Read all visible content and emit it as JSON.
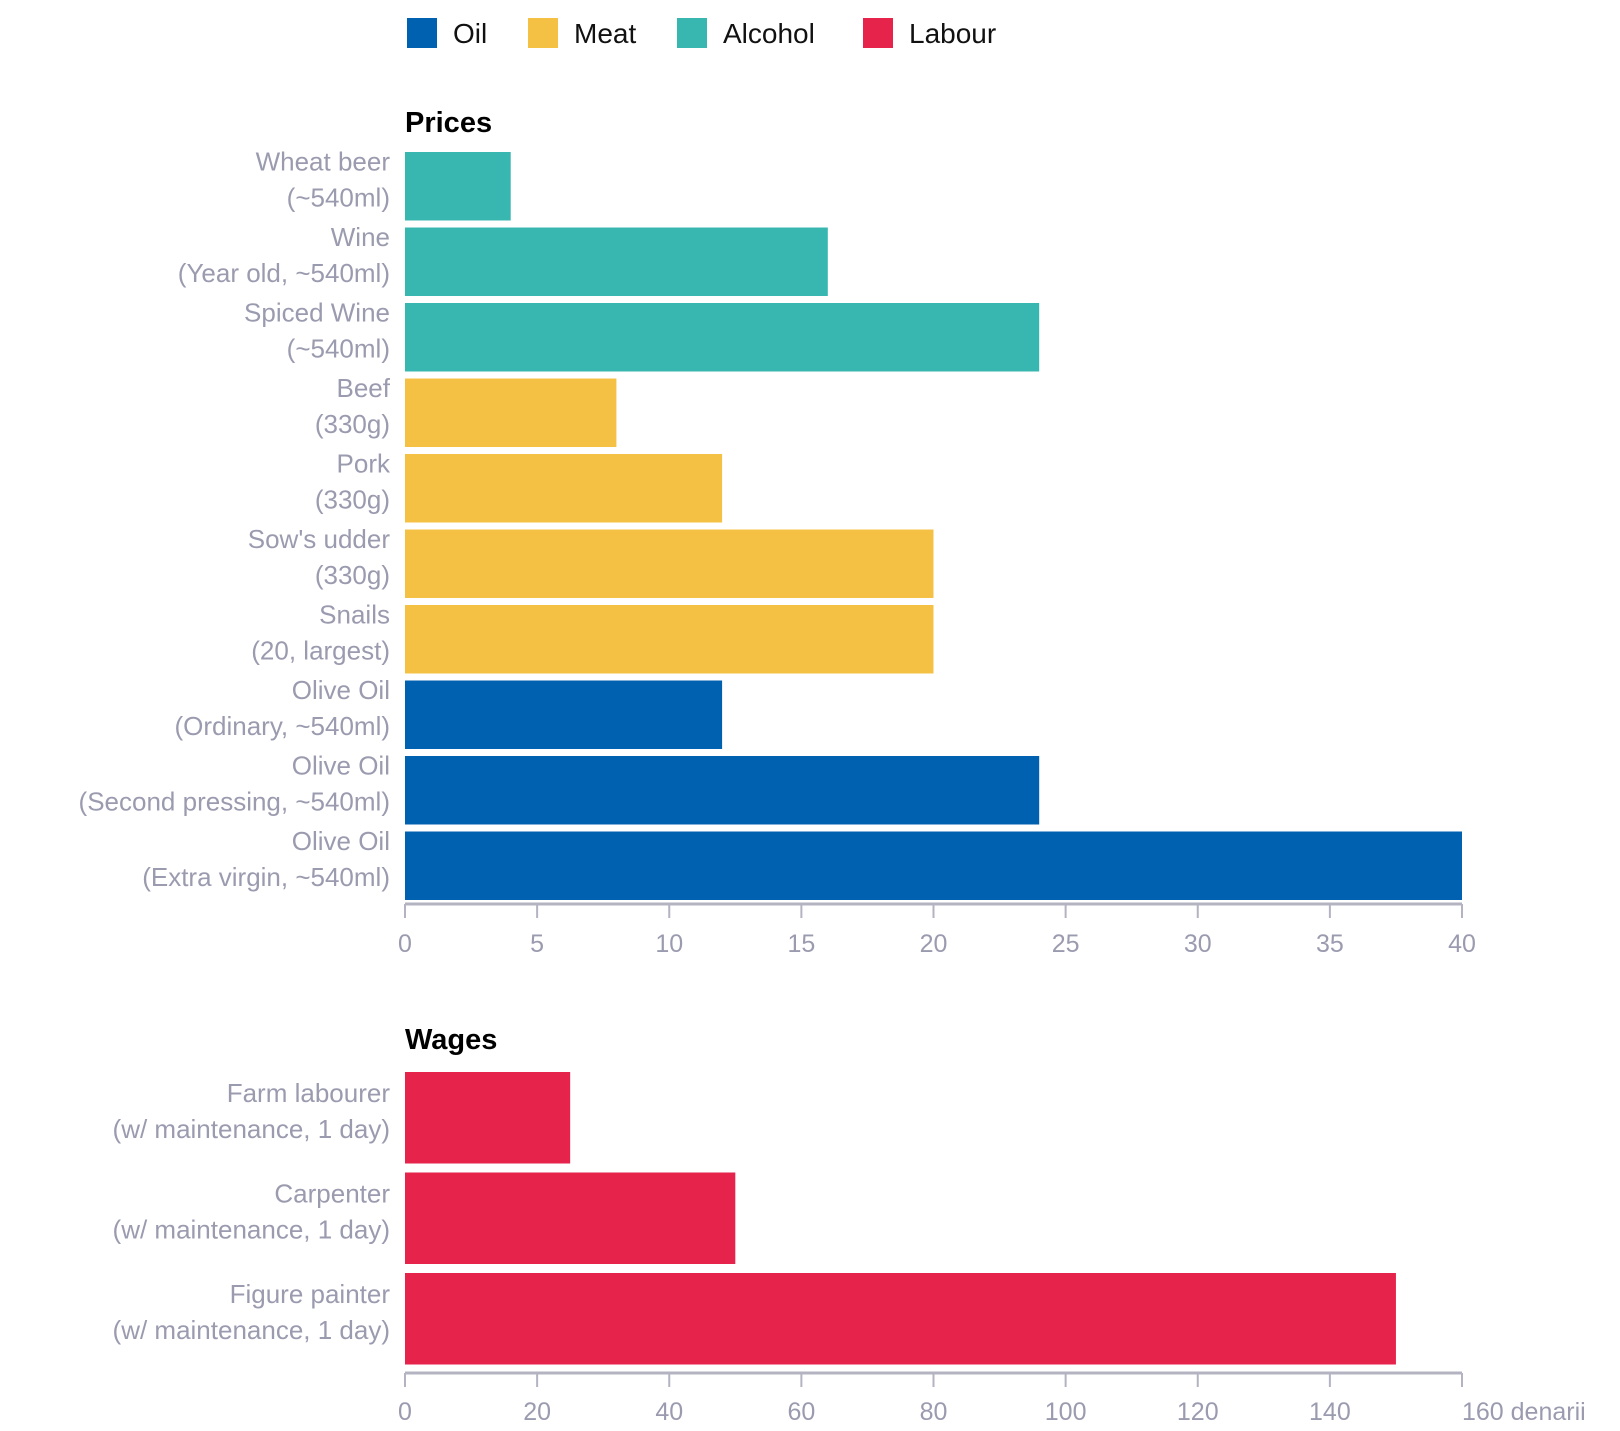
{
  "legend": [
    {
      "name": "Oil",
      "color": "#0061b1"
    },
    {
      "name": "Meat",
      "color": "#f4c145"
    },
    {
      "name": "Alcohol",
      "color": "#38b7b1"
    },
    {
      "name": "Labour",
      "color": "#e6234b"
    }
  ],
  "chart_data": [
    {
      "type": "bar",
      "orientation": "horizontal",
      "title": "Prices",
      "xlim": [
        0,
        40
      ],
      "ticks": [
        0,
        5,
        10,
        15,
        20,
        25,
        30,
        35,
        40
      ],
      "tick_labels": [
        "0",
        "5",
        "10",
        "15",
        "20",
        "25",
        "30",
        "35",
        "40"
      ],
      "categories": [
        [
          "Wheat beer",
          "(~540ml)"
        ],
        [
          "Wine",
          "(Year old, ~540ml)"
        ],
        [
          "Spiced Wine",
          "(~540ml)"
        ],
        [
          "Beef",
          "(330g)"
        ],
        [
          "Pork",
          "(330g)"
        ],
        [
          "Sow's udder",
          "(330g)"
        ],
        [
          "Snails",
          "(20, largest)"
        ],
        [
          "Olive Oil",
          "(Ordinary, ~540ml)"
        ],
        [
          "Olive Oil",
          "(Second pressing, ~540ml)"
        ],
        [
          "Olive Oil",
          "(Extra virgin, ~540ml)"
        ]
      ],
      "values": [
        4,
        16,
        24,
        8,
        12,
        20,
        20,
        12,
        24,
        40
      ],
      "groups": [
        "Alcohol",
        "Alcohol",
        "Alcohol",
        "Meat",
        "Meat",
        "Meat",
        "Meat",
        "Oil",
        "Oil",
        "Oil"
      ]
    },
    {
      "type": "bar",
      "orientation": "horizontal",
      "title": "Wages",
      "xlim": [
        0,
        160
      ],
      "ticks": [
        0,
        20,
        40,
        60,
        80,
        100,
        120,
        140,
        160
      ],
      "tick_labels": [
        "0",
        "20",
        "40",
        "60",
        "80",
        "100",
        "120",
        "140",
        "160 denarii"
      ],
      "categories": [
        [
          "Farm labourer",
          "(w/ maintenance, 1 day)"
        ],
        [
          "Carpenter",
          "(w/ maintenance, 1 day)"
        ],
        [
          "Figure painter",
          "(w/ maintenance, 1 day)"
        ]
      ],
      "values": [
        25,
        50,
        150
      ],
      "groups": [
        "Labour",
        "Labour",
        "Labour"
      ]
    }
  ]
}
